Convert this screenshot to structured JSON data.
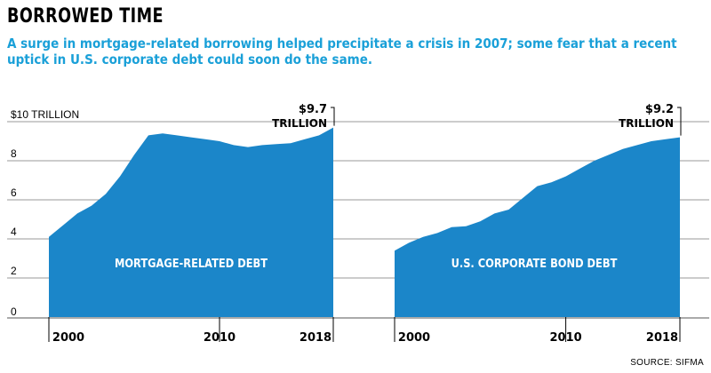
{
  "title": "BORROWED TIME",
  "subtitle": "A surge in mortgage-related borrowing helped precipitate a crisis in 2007; some fear that a recent uptick in U.S. corporate debt could soon do the same.",
  "source": "SOURCE: SIFMA",
  "colors": {
    "area": "#1b86c9",
    "subtitle": "#1aa0d8",
    "grid": "#777777"
  },
  "chart_data": [
    {
      "type": "area",
      "name": "MORTGAGE-RELATED DEBT",
      "ylim": [
        0,
        10
      ],
      "yticks": [
        "0",
        "2",
        "4",
        "6",
        "8",
        "$10 TRILLION"
      ],
      "xticks": [
        "2000",
        "2010",
        "2018"
      ],
      "annotation": {
        "value": "$9.7",
        "unit": "TRILLION"
      },
      "x": [
        1998,
        1999,
        2000,
        2001,
        2002,
        2003,
        2004,
        2005,
        2006,
        2007,
        2008,
        2009,
        2010,
        2011,
        2012,
        2013,
        2014,
        2015,
        2016,
        2017,
        2018
      ],
      "values": [
        4.1,
        4.7,
        5.3,
        5.7,
        6.3,
        7.2,
        8.3,
        9.3,
        9.4,
        9.3,
        9.2,
        9.1,
        9.0,
        8.8,
        8.7,
        8.8,
        8.85,
        8.9,
        9.1,
        9.3,
        9.7
      ]
    },
    {
      "type": "area",
      "name": "U.S. CORPORATE BOND DEBT",
      "ylim": [
        0,
        10
      ],
      "xticks": [
        "2000",
        "2010",
        "2018"
      ],
      "annotation": {
        "value": "$9.2",
        "unit": "TRILLION"
      },
      "x": [
        1998,
        1999,
        2000,
        2001,
        2002,
        2003,
        2004,
        2005,
        2006,
        2007,
        2008,
        2009,
        2010,
        2011,
        2012,
        2013,
        2014,
        2015,
        2016,
        2017,
        2018
      ],
      "values": [
        3.4,
        3.8,
        4.1,
        4.3,
        4.6,
        4.65,
        4.9,
        5.3,
        5.5,
        6.1,
        6.7,
        6.9,
        7.2,
        7.6,
        8.0,
        8.3,
        8.6,
        8.8,
        9.0,
        9.1,
        9.2
      ]
    }
  ]
}
